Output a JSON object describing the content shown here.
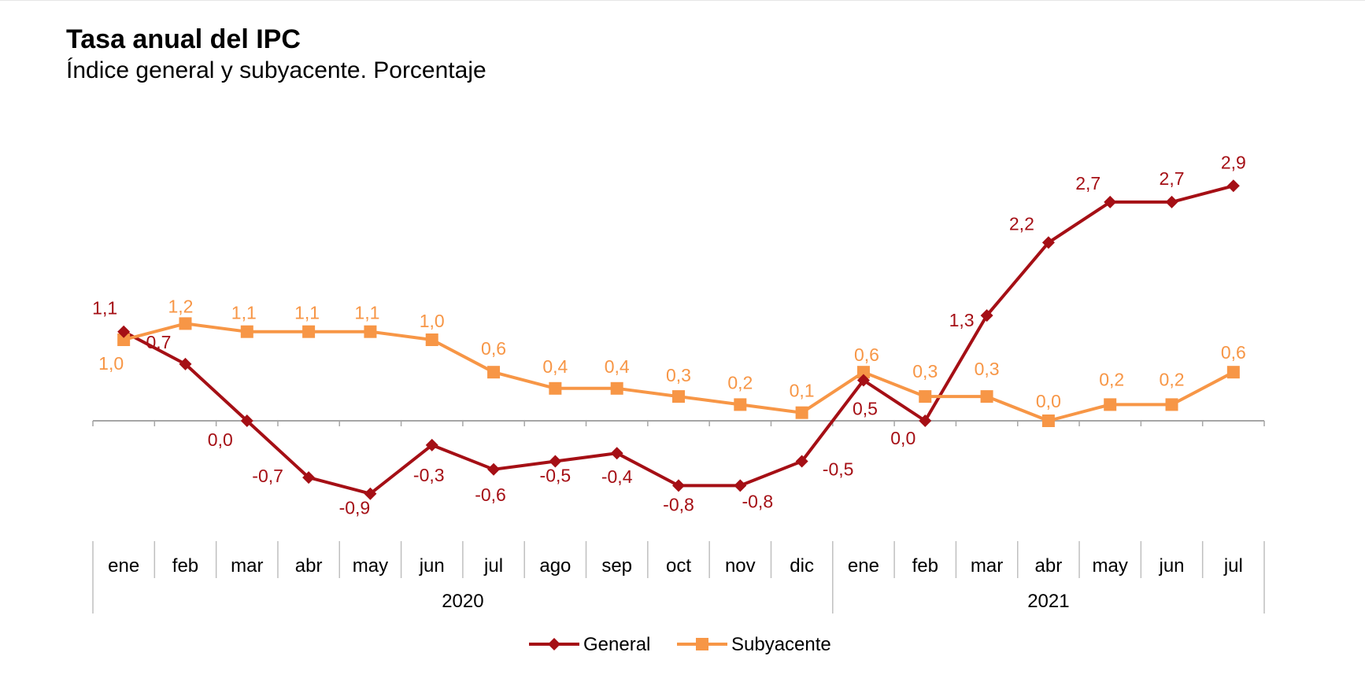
{
  "title": "Tasa anual del IPC",
  "subtitle": "Índice general y subyacente. Porcentaje",
  "chart_data": {
    "type": "line",
    "categories": [
      "ene",
      "feb",
      "mar",
      "abr",
      "may",
      "jun",
      "jul",
      "ago",
      "sep",
      "oct",
      "nov",
      "dic",
      "ene",
      "feb",
      "mar",
      "abr",
      "may",
      "jun",
      "jul"
    ],
    "groups": [
      {
        "label": "2020",
        "count": 12
      },
      {
        "label": "2021",
        "count": 7
      }
    ],
    "series": [
      {
        "name": "General",
        "color": "#A50F15",
        "marker": "diamond",
        "values": [
          1.1,
          0.7,
          0.0,
          -0.7,
          -0.9,
          -0.3,
          -0.6,
          -0.5,
          -0.4,
          -0.8,
          -0.8,
          -0.5,
          0.5,
          0.0,
          1.3,
          2.2,
          2.7,
          2.7,
          2.9
        ],
        "labels": [
          "1,1",
          "0,7",
          "0,0",
          "-0,7",
          "-0,9",
          "-0,3",
          "-0,6",
          "-0,5",
          "-0,4",
          "-0,8",
          "-0,8",
          "-0,5",
          "0,5",
          "0,0",
          "1,3",
          "2,2",
          "2,7",
          "2,7",
          "2,9"
        ]
      },
      {
        "name": "Subyacente",
        "color": "#F79646",
        "marker": "square",
        "values": [
          1.0,
          1.2,
          1.1,
          1.1,
          1.1,
          1.0,
          0.6,
          0.4,
          0.4,
          0.3,
          0.2,
          0.1,
          0.6,
          0.3,
          0.3,
          0.0,
          0.2,
          0.2,
          0.6
        ],
        "labels": [
          "1,0",
          "1,2",
          "1,1",
          "1,1",
          "1,1",
          "1,0",
          "0,6",
          "0,4",
          "0,4",
          "0,3",
          "0,2",
          "0,1",
          "0,6",
          "0,3",
          "0,3",
          "0,0",
          "0,2",
          "0,2",
          "0,6"
        ]
      }
    ],
    "ylim": [
      -1.2,
      3.2
    ],
    "grid": false,
    "legend_position": "bottom-center"
  }
}
